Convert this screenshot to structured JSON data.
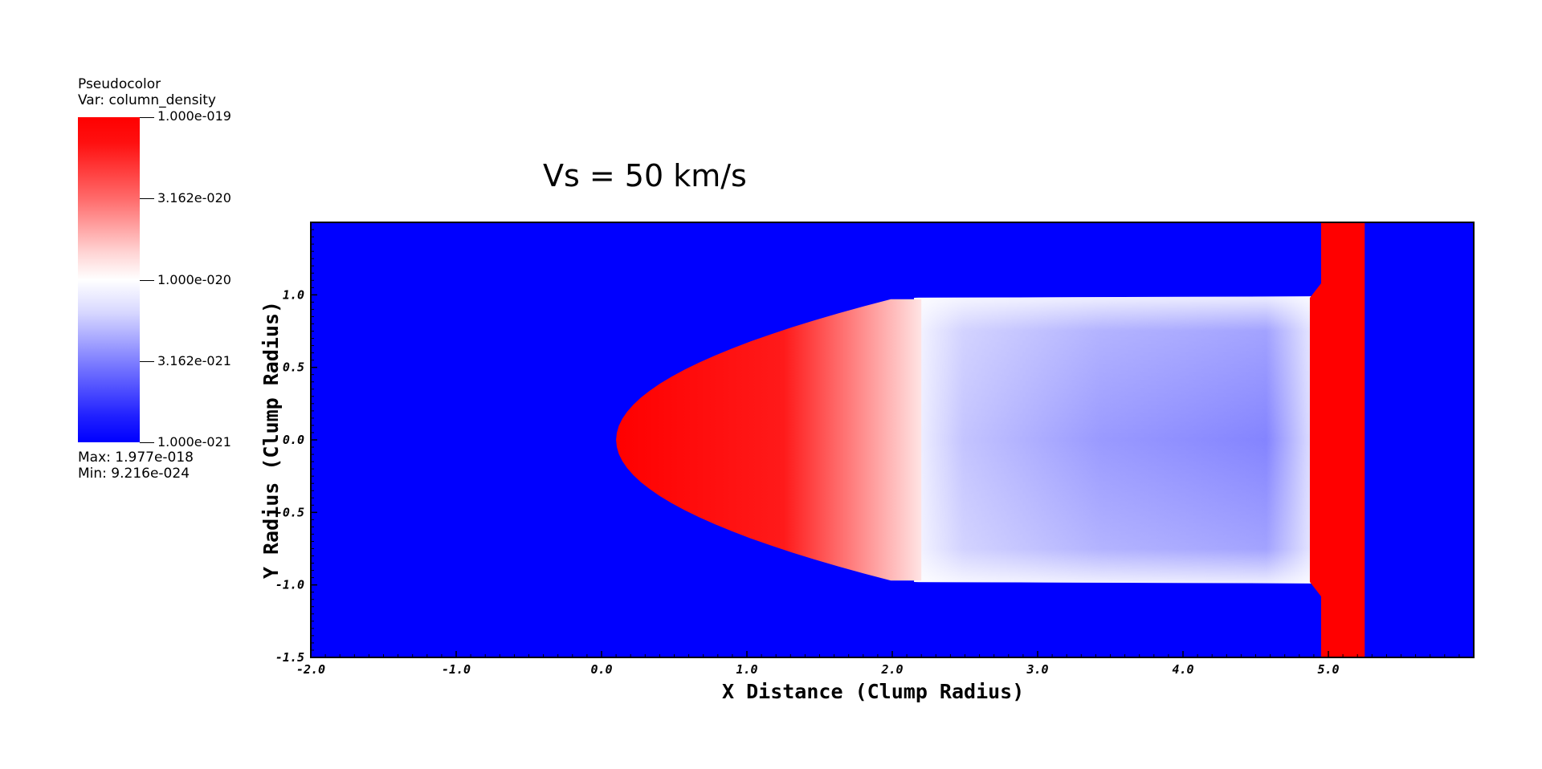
{
  "legend": {
    "plot_type": "Pseudocolor",
    "variable": "Var: column_density",
    "ticks": [
      "1.000e-019",
      "3.162e-020",
      "1.000e-020",
      "3.162e-021",
      "1.000e-021"
    ],
    "max": "Max:  1.977e-018",
    "min": "Min:  9.216e-024",
    "colors": {
      "high": "#ff0000",
      "mid": "#ffffff",
      "low": "#0000ff"
    }
  },
  "chart_data": {
    "type": "heatmap",
    "title": "Vs = 50 km/s",
    "xlabel": "X Distance (Clump Radius)",
    "ylabel": "Y Radius (Clump Radius)",
    "xlim": [
      -2.0,
      6.0
    ],
    "ylim": [
      -1.5,
      1.5
    ],
    "x_ticks": [
      "-2.0",
      "-1.0",
      "0.0",
      "1.0",
      "2.0",
      "3.0",
      "4.0",
      "5.0"
    ],
    "y_ticks": [
      "-1.5",
      "-1.0",
      "-0.5",
      "0.0",
      "0.5",
      "1.0"
    ],
    "colormap": [
      "#0000ff",
      "#ffffff",
      "#ff0000"
    ],
    "background_color": "#0000ff",
    "features": [
      {
        "name": "clump-head",
        "x_start": 0.1,
        "x_end": 2.2,
        "y_half_width": 0.97,
        "level": "high"
      },
      {
        "name": "clump-tail",
        "x_start": 2.2,
        "x_end": 5.0,
        "y_half_width": 0.98,
        "level": "mid-low"
      },
      {
        "name": "shock-front",
        "x_start": 4.95,
        "x_end": 5.25,
        "y_half_width": 1.5,
        "level": "high"
      }
    ]
  }
}
